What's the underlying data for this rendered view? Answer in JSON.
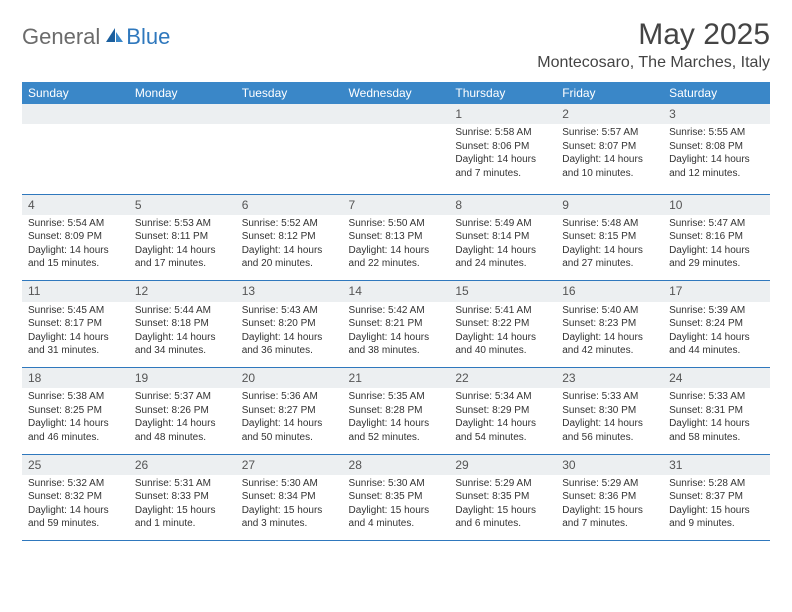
{
  "brand": {
    "general": "General",
    "blue": "Blue"
  },
  "title": "May 2025",
  "location": "Montecosaro, The Marches, Italy",
  "colors": {
    "header_bg": "#3a87c8",
    "header_text": "#ffffff",
    "daynum_bg": "#eceff1",
    "border": "#2f78bd",
    "logo_gray": "#6b6b6b",
    "logo_blue": "#2f78bd"
  },
  "weekdays": [
    "Sunday",
    "Monday",
    "Tuesday",
    "Wednesday",
    "Thursday",
    "Friday",
    "Saturday"
  ],
  "weeks": [
    [
      null,
      null,
      null,
      null,
      {
        "n": "1",
        "sr": "Sunrise: 5:58 AM",
        "ss": "Sunset: 8:06 PM",
        "dl": "Daylight: 14 hours and 7 minutes."
      },
      {
        "n": "2",
        "sr": "Sunrise: 5:57 AM",
        "ss": "Sunset: 8:07 PM",
        "dl": "Daylight: 14 hours and 10 minutes."
      },
      {
        "n": "3",
        "sr": "Sunrise: 5:55 AM",
        "ss": "Sunset: 8:08 PM",
        "dl": "Daylight: 14 hours and 12 minutes."
      }
    ],
    [
      {
        "n": "4",
        "sr": "Sunrise: 5:54 AM",
        "ss": "Sunset: 8:09 PM",
        "dl": "Daylight: 14 hours and 15 minutes."
      },
      {
        "n": "5",
        "sr": "Sunrise: 5:53 AM",
        "ss": "Sunset: 8:11 PM",
        "dl": "Daylight: 14 hours and 17 minutes."
      },
      {
        "n": "6",
        "sr": "Sunrise: 5:52 AM",
        "ss": "Sunset: 8:12 PM",
        "dl": "Daylight: 14 hours and 20 minutes."
      },
      {
        "n": "7",
        "sr": "Sunrise: 5:50 AM",
        "ss": "Sunset: 8:13 PM",
        "dl": "Daylight: 14 hours and 22 minutes."
      },
      {
        "n": "8",
        "sr": "Sunrise: 5:49 AM",
        "ss": "Sunset: 8:14 PM",
        "dl": "Daylight: 14 hours and 24 minutes."
      },
      {
        "n": "9",
        "sr": "Sunrise: 5:48 AM",
        "ss": "Sunset: 8:15 PM",
        "dl": "Daylight: 14 hours and 27 minutes."
      },
      {
        "n": "10",
        "sr": "Sunrise: 5:47 AM",
        "ss": "Sunset: 8:16 PM",
        "dl": "Daylight: 14 hours and 29 minutes."
      }
    ],
    [
      {
        "n": "11",
        "sr": "Sunrise: 5:45 AM",
        "ss": "Sunset: 8:17 PM",
        "dl": "Daylight: 14 hours and 31 minutes."
      },
      {
        "n": "12",
        "sr": "Sunrise: 5:44 AM",
        "ss": "Sunset: 8:18 PM",
        "dl": "Daylight: 14 hours and 34 minutes."
      },
      {
        "n": "13",
        "sr": "Sunrise: 5:43 AM",
        "ss": "Sunset: 8:20 PM",
        "dl": "Daylight: 14 hours and 36 minutes."
      },
      {
        "n": "14",
        "sr": "Sunrise: 5:42 AM",
        "ss": "Sunset: 8:21 PM",
        "dl": "Daylight: 14 hours and 38 minutes."
      },
      {
        "n": "15",
        "sr": "Sunrise: 5:41 AM",
        "ss": "Sunset: 8:22 PM",
        "dl": "Daylight: 14 hours and 40 minutes."
      },
      {
        "n": "16",
        "sr": "Sunrise: 5:40 AM",
        "ss": "Sunset: 8:23 PM",
        "dl": "Daylight: 14 hours and 42 minutes."
      },
      {
        "n": "17",
        "sr": "Sunrise: 5:39 AM",
        "ss": "Sunset: 8:24 PM",
        "dl": "Daylight: 14 hours and 44 minutes."
      }
    ],
    [
      {
        "n": "18",
        "sr": "Sunrise: 5:38 AM",
        "ss": "Sunset: 8:25 PM",
        "dl": "Daylight: 14 hours and 46 minutes."
      },
      {
        "n": "19",
        "sr": "Sunrise: 5:37 AM",
        "ss": "Sunset: 8:26 PM",
        "dl": "Daylight: 14 hours and 48 minutes."
      },
      {
        "n": "20",
        "sr": "Sunrise: 5:36 AM",
        "ss": "Sunset: 8:27 PM",
        "dl": "Daylight: 14 hours and 50 minutes."
      },
      {
        "n": "21",
        "sr": "Sunrise: 5:35 AM",
        "ss": "Sunset: 8:28 PM",
        "dl": "Daylight: 14 hours and 52 minutes."
      },
      {
        "n": "22",
        "sr": "Sunrise: 5:34 AM",
        "ss": "Sunset: 8:29 PM",
        "dl": "Daylight: 14 hours and 54 minutes."
      },
      {
        "n": "23",
        "sr": "Sunrise: 5:33 AM",
        "ss": "Sunset: 8:30 PM",
        "dl": "Daylight: 14 hours and 56 minutes."
      },
      {
        "n": "24",
        "sr": "Sunrise: 5:33 AM",
        "ss": "Sunset: 8:31 PM",
        "dl": "Daylight: 14 hours and 58 minutes."
      }
    ],
    [
      {
        "n": "25",
        "sr": "Sunrise: 5:32 AM",
        "ss": "Sunset: 8:32 PM",
        "dl": "Daylight: 14 hours and 59 minutes."
      },
      {
        "n": "26",
        "sr": "Sunrise: 5:31 AM",
        "ss": "Sunset: 8:33 PM",
        "dl": "Daylight: 15 hours and 1 minute."
      },
      {
        "n": "27",
        "sr": "Sunrise: 5:30 AM",
        "ss": "Sunset: 8:34 PM",
        "dl": "Daylight: 15 hours and 3 minutes."
      },
      {
        "n": "28",
        "sr": "Sunrise: 5:30 AM",
        "ss": "Sunset: 8:35 PM",
        "dl": "Daylight: 15 hours and 4 minutes."
      },
      {
        "n": "29",
        "sr": "Sunrise: 5:29 AM",
        "ss": "Sunset: 8:35 PM",
        "dl": "Daylight: 15 hours and 6 minutes."
      },
      {
        "n": "30",
        "sr": "Sunrise: 5:29 AM",
        "ss": "Sunset: 8:36 PM",
        "dl": "Daylight: 15 hours and 7 minutes."
      },
      {
        "n": "31",
        "sr": "Sunrise: 5:28 AM",
        "ss": "Sunset: 8:37 PM",
        "dl": "Daylight: 15 hours and 9 minutes."
      }
    ]
  ]
}
